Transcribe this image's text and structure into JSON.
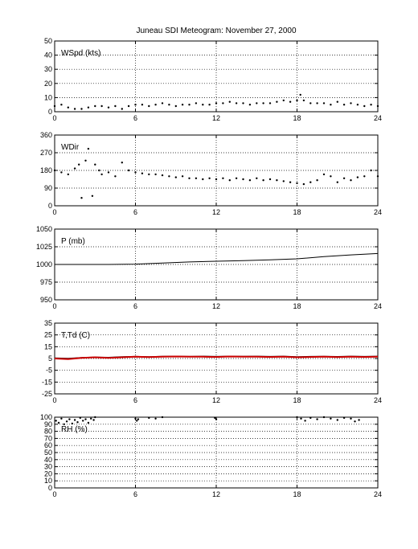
{
  "figure": {
    "title": "Juneau SDI Meteogram:  November 27, 2000"
  },
  "chart_data": [
    {
      "type": "scatter",
      "label": "WSpd (kts)",
      "x_ticks": [
        0,
        6,
        12,
        18,
        24
      ],
      "xlim": [
        0,
        24
      ],
      "ylim": [
        0,
        50
      ],
      "y_ticks": [
        0,
        10,
        20,
        30,
        40,
        50
      ],
      "grid": true,
      "series": [
        {
          "color": "#000000",
          "x": [
            0.0,
            0.5,
            1.0,
            1.5,
            2.0,
            2.5,
            3.0,
            3.5,
            4.0,
            4.5,
            5.0,
            5.5,
            6.0,
            6.5,
            7.0,
            7.5,
            8.0,
            8.5,
            9.0,
            9.5,
            10.0,
            10.5,
            11.0,
            11.5,
            12.0,
            12.5,
            13.0,
            13.5,
            14.0,
            14.5,
            15.0,
            15.5,
            16.0,
            16.5,
            17.0,
            17.5,
            18.0,
            18.25,
            18.5,
            19.0,
            19.5,
            20.0,
            20.5,
            21.0,
            21.5,
            22.0,
            22.5,
            23.0,
            23.5,
            24.0
          ],
          "y": [
            4,
            5,
            3,
            2,
            2,
            3,
            4,
            4,
            3,
            4,
            2,
            4,
            5,
            5,
            4,
            5,
            6,
            5,
            4,
            5,
            5,
            6,
            5,
            5,
            6,
            6,
            7,
            6,
            6,
            5,
            6,
            6,
            6,
            7,
            8,
            7,
            8,
            12,
            8,
            6,
            6,
            6,
            5,
            7,
            5,
            6,
            5,
            4,
            5,
            4
          ]
        }
      ]
    },
    {
      "type": "scatter",
      "label": "WDir",
      "x_ticks": [
        0,
        6,
        12,
        18,
        24
      ],
      "xlim": [
        0,
        24
      ],
      "ylim": [
        0,
        360
      ],
      "y_ticks": [
        0,
        90,
        180,
        270,
        360
      ],
      "grid": true,
      "series": [
        {
          "color": "#000000",
          "x": [
            0.0,
            0.5,
            1.0,
            1.5,
            1.8,
            2.0,
            2.3,
            2.5,
            2.8,
            3.0,
            3.3,
            3.5,
            4.0,
            4.5,
            5.0,
            5.5,
            6.0,
            6.5,
            7.0,
            7.5,
            8.0,
            8.5,
            9.0,
            9.5,
            10.0,
            10.5,
            11.0,
            11.5,
            12.0,
            12.5,
            13.0,
            13.5,
            14.0,
            14.5,
            15.0,
            15.5,
            16.0,
            16.5,
            17.0,
            17.5,
            18.0,
            18.5,
            19.0,
            19.5,
            20.0,
            20.5,
            21.0,
            21.5,
            22.0,
            22.5,
            23.0,
            23.5,
            24.0
          ],
          "y": [
            180,
            170,
            160,
            190,
            210,
            40,
            230,
            290,
            50,
            210,
            180,
            160,
            170,
            150,
            220,
            180,
            170,
            165,
            160,
            160,
            155,
            150,
            145,
            150,
            140,
            140,
            135,
            140,
            135,
            140,
            130,
            140,
            135,
            130,
            140,
            130,
            135,
            130,
            125,
            120,
            115,
            110,
            120,
            130,
            160,
            150,
            120,
            140,
            130,
            145,
            150,
            180,
            150
          ]
        }
      ]
    },
    {
      "type": "line",
      "label": "P (mb)",
      "x_ticks": [
        0,
        6,
        12,
        18,
        24
      ],
      "xlim": [
        0,
        24
      ],
      "ylim": [
        950,
        1050
      ],
      "y_ticks": [
        950,
        975,
        1000,
        1025,
        1050
      ],
      "grid": true,
      "series": [
        {
          "color": "#000000",
          "x": [
            0,
            4,
            6,
            8,
            10,
            12,
            14,
            16,
            18,
            20,
            22,
            24
          ],
          "y": [
            1000,
            1000,
            1000.5,
            1002,
            1003.5,
            1004.5,
            1005.5,
            1006.5,
            1008,
            1011,
            1013.5,
            1015.5
          ]
        }
      ]
    },
    {
      "type": "line",
      "label": "T,Td (C)",
      "x_ticks": [
        0,
        6,
        12,
        18,
        24
      ],
      "xlim": [
        0,
        24
      ],
      "ylim": [
        -25,
        35
      ],
      "y_ticks": [
        -25,
        -15,
        -5,
        5,
        15,
        25,
        35
      ],
      "grid": true,
      "series": [
        {
          "color": "#000000",
          "x": [
            0,
            1,
            2,
            3,
            4,
            5,
            6,
            7,
            8,
            9,
            10,
            11,
            12,
            13,
            14,
            15,
            16,
            17,
            18,
            19,
            20,
            21,
            22,
            23,
            24
          ],
          "y": [
            5.5,
            5.2,
            5.8,
            6.2,
            6.0,
            6.5,
            6.8,
            6.5,
            6.9,
            7.0,
            6.8,
            7.0,
            6.8,
            7.0,
            6.9,
            7.0,
            6.8,
            7.0,
            6.6,
            6.8,
            6.9,
            6.7,
            7.0,
            6.8,
            7.0
          ]
        },
        {
          "color": "#cc0000",
          "x": [
            0,
            1,
            2,
            3,
            4,
            5,
            6,
            7,
            8,
            9,
            10,
            11,
            12,
            13,
            14,
            15,
            16,
            17,
            18,
            19,
            20,
            21,
            22,
            23,
            24
          ],
          "y": [
            5.0,
            4.5,
            5.5,
            6.0,
            5.5,
            6.0,
            6.5,
            6.2,
            6.5,
            6.7,
            6.5,
            6.5,
            6.3,
            6.7,
            6.5,
            6.6,
            6.3,
            6.6,
            6.0,
            6.3,
            6.5,
            6.2,
            6.6,
            6.3,
            6.5
          ]
        }
      ]
    },
    {
      "type": "scatter",
      "label": "RH (%)",
      "x_ticks": [
        0,
        6,
        12,
        18,
        24
      ],
      "xlim": [
        0,
        24
      ],
      "ylim": [
        0,
        100
      ],
      "y_ticks": [
        0,
        10,
        20,
        30,
        40,
        50,
        60,
        70,
        80,
        90,
        100
      ],
      "grid": true,
      "series": [
        {
          "color": "#000000",
          "x": [
            0.1,
            0.3,
            0.5,
            0.7,
            0.9,
            1.1,
            1.3,
            1.5,
            1.7,
            1.9,
            2.1,
            2.3,
            2.5,
            2.7,
            2.9,
            3.0,
            6.0,
            6.1,
            6.2,
            7.0,
            7.5,
            8.0,
            11.9,
            12.0,
            18.0,
            18.3,
            18.6,
            19.0,
            19.5,
            20.0,
            20.5,
            21.0,
            21.5,
            22.0,
            22.3,
            22.6
          ],
          "y": [
            95,
            92,
            98,
            90,
            94,
            97,
            91,
            96,
            93,
            99,
            95,
            97,
            92,
            98,
            96,
            100,
            98,
            95,
            97,
            99,
            98,
            100,
            99,
            97,
            100,
            98,
            95,
            99,
            97,
            100,
            98,
            96,
            99,
            98,
            94,
            96
          ]
        }
      ]
    }
  ]
}
